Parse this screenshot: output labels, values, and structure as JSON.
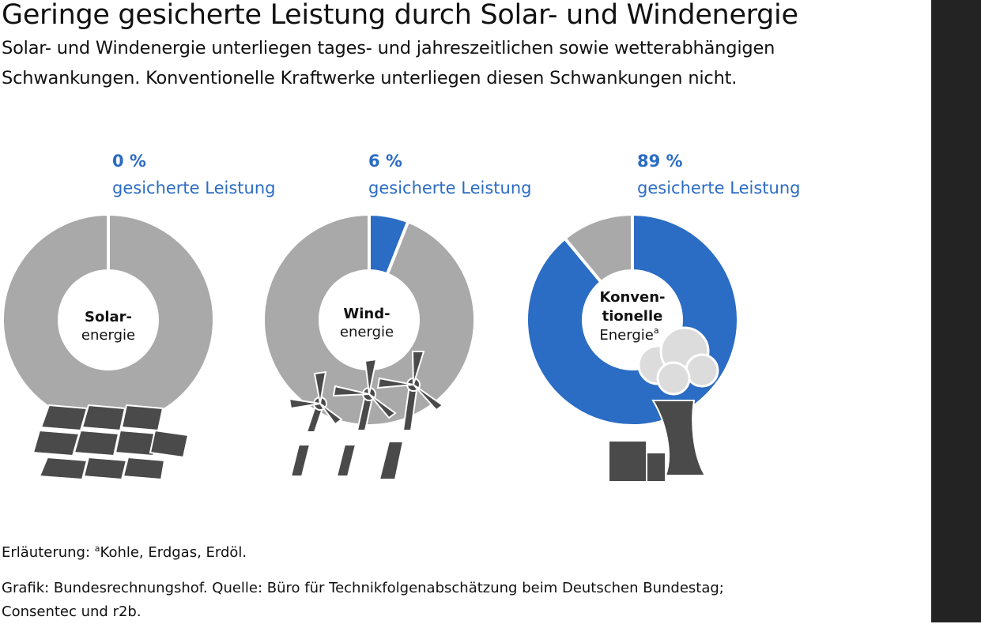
{
  "header": {
    "title": "Geringe gesicherte Leistung durch Solar- und Windenergie",
    "subtitle_line1": "Solar- und Windenergie unterliegen tages- und jahreszeitlichen sowie wetterabhängigen",
    "subtitle_line2": "Schwankungen. Konventionelle Kraftwerke unterliegen diesen Schwankungen nicht."
  },
  "chart_data": {
    "type": "pie",
    "title": "Geringe gesicherte Leistung durch Solar- und Windenergie",
    "series_label": "gesicherte Leistung",
    "items": [
      {
        "key": "solar",
        "pct_text": "0 %",
        "value": 0,
        "label_line1": "Solar-",
        "label_line2": "energie",
        "icon": "solar-panel-icon"
      },
      {
        "key": "wind",
        "pct_text": "6 %",
        "value": 6,
        "label_line1": "Wind-",
        "label_line2": "energie",
        "icon": "wind-turbine-icon"
      },
      {
        "key": "conv",
        "pct_text": "89 %",
        "value": 89,
        "label_line1": "Konven-",
        "label_line2": "tionelle",
        "label_line3": "Energie",
        "label_sup": "a",
        "icon": "power-plant-icon"
      }
    ],
    "colors": {
      "secured": "#2b6cc4",
      "rest": "#a9a9a9"
    }
  },
  "footnote": {
    "prefix": "Erläuterung: ",
    "sup": "a",
    "text": "Kohle, Erdgas, Erdöl."
  },
  "source": {
    "line1": "Grafik: Bundesrechnungshof. Quelle: Büro für Technikfolgenabschätzung beim Deutschen Bundestag;",
    "line2": "Consentec und r2b."
  }
}
